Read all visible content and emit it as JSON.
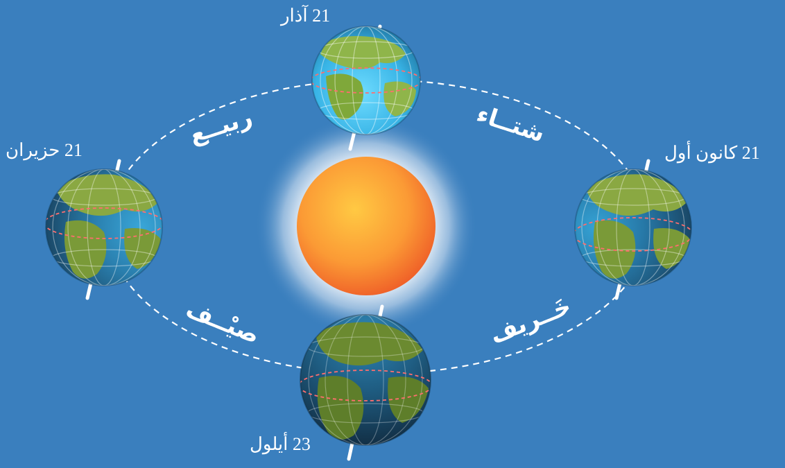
{
  "dates": {
    "march": "21 آذار",
    "june": "21 حزيران",
    "september": "23 أيلول",
    "december": "21 كانون أول"
  },
  "seasons": {
    "spring": "ربيــع",
    "winter": "شتــاء",
    "summer": "صيْــف",
    "autumn": "خَــريف"
  },
  "colors": {
    "background": "#3a7fbe",
    "orbit": "#ffffff",
    "sun_core": "#ffbf3f",
    "sun_edge": "#f0652a",
    "sun_glow": "#ffffff",
    "ocean_lit": "#4fc3f0",
    "ocean_dark": "#1b4f6e",
    "land": "#7fa83a",
    "equator": "#ff6e6e",
    "axis": "#ffffff"
  }
}
